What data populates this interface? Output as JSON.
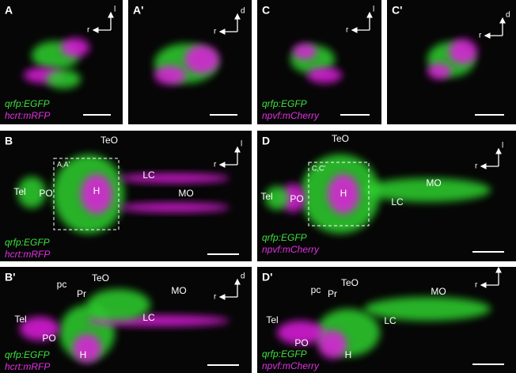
{
  "panels": [
    {
      "label": "A",
      "axis": [
        "l",
        "r"
      ],
      "legend": [
        "qrfp:EGFP",
        "hcrt:mRFP"
      ]
    },
    {
      "label": "A'",
      "axis": [
        "d",
        "r"
      ]
    },
    {
      "label": "C",
      "axis": [
        "l",
        "r"
      ],
      "legend": [
        "qrfp:EGFP",
        "npvf:mCherry"
      ]
    },
    {
      "label": "C'",
      "axis": [
        "d",
        "r"
      ]
    },
    {
      "label": "B",
      "axis": [
        "l",
        "r"
      ],
      "legend": [
        "qrfp:EGFP",
        "hcrt:mRFP"
      ],
      "regions": [
        "TeO",
        "Tel",
        "PO",
        "H",
        "LC",
        "MO"
      ],
      "box_label": "A,A'"
    },
    {
      "label": "D",
      "axis": [
        "l",
        "r"
      ],
      "legend": [
        "qrfp:EGFP",
        "npvf:mCherry"
      ],
      "regions": [
        "TeO",
        "Tel",
        "PO",
        "H",
        "LC",
        "MO"
      ],
      "box_label": "C,C'"
    },
    {
      "label": "B'",
      "axis": [
        "d",
        "r"
      ],
      "legend": [
        "qrfp:EGFP",
        "hcrt:mRFP"
      ],
      "regions": [
        "pc",
        "Pr",
        "TeO",
        "MO",
        "Tel",
        "LC",
        "PO",
        "H"
      ]
    },
    {
      "label": "D'",
      "axis": [
        "d",
        "r"
      ],
      "legend": [
        "qrfp:EGFP",
        "npvf:mCherry"
      ],
      "regions": [
        "pc",
        "Pr",
        "TeO",
        "MO",
        "Tel",
        "LC",
        "PO",
        "H"
      ]
    }
  ]
}
